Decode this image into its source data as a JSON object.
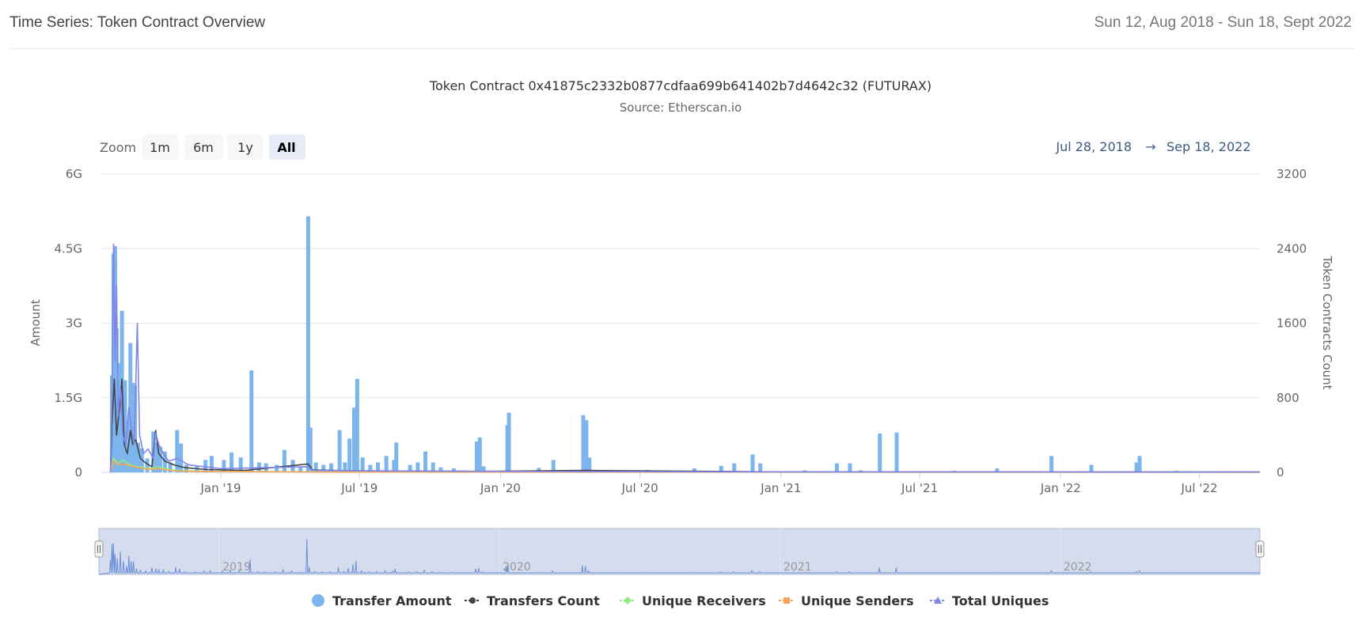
{
  "header": {
    "title": "Time Series: Token Contract Overview",
    "date_range": "Sun 12, Aug 2018 - Sun 18, Sept 2022"
  },
  "colors": {
    "transfer_amount": "#7cb5ec",
    "transfers_count": "#434348",
    "unique_receivers": "#90ed7d",
    "unique_senders": "#f7a35c",
    "total_uniques": "#8085e9",
    "navigator_fill": "#ccd6eb",
    "range_text": "#3d5a80"
  },
  "zoom": {
    "label": "Zoom",
    "buttons": [
      "1m",
      "6m",
      "1y",
      "All"
    ],
    "selected": "All"
  },
  "range_display": {
    "from": "Jul 28, 2018",
    "arrow": "→",
    "to": "Sep 18, 2022"
  },
  "chart_data": {
    "type": "bar",
    "title": "Token Contract 0x41875c2332b0877cdfaa699b641402b7d4642c32 (FUTURAX)",
    "subtitle": "Source: Etherscan.io",
    "ylabel": "Amount",
    "ylabel_right": "Token Contracts Count",
    "ylim": [
      0,
      6000000000
    ],
    "ylim_right": [
      0,
      3200
    ],
    "yticks": [
      "0",
      "1.5G",
      "3G",
      "4.5G",
      "6G"
    ],
    "yticks_right": [
      "0",
      "800",
      "1600",
      "2400",
      "3200"
    ],
    "xlim": [
      "2018-07-28",
      "2022-09-18"
    ],
    "xticks": [
      {
        "date": "2019-01-01",
        "label": "Jan '19"
      },
      {
        "date": "2019-07-01",
        "label": "Jul '19"
      },
      {
        "date": "2020-01-01",
        "label": "Jan '20"
      },
      {
        "date": "2020-07-01",
        "label": "Jul '20"
      },
      {
        "date": "2021-01-01",
        "label": "Jan '21"
      },
      {
        "date": "2021-07-01",
        "label": "Jul '21"
      },
      {
        "date": "2022-01-01",
        "label": "Jan '22"
      },
      {
        "date": "2022-07-01",
        "label": "Jul '22"
      }
    ],
    "navigator_labels": [
      {
        "date": "2019-01-01",
        "label": "2019"
      },
      {
        "date": "2020-01-01",
        "label": "2020"
      },
      {
        "date": "2021-01-01",
        "label": "2021"
      },
      {
        "date": "2022-01-01",
        "label": "2022"
      }
    ],
    "grid": true,
    "legend_position": "bottom",
    "series": [
      {
        "name": "Transfer Amount",
        "type": "column",
        "axis": "left",
        "points": [
          [
            "2018-08-12",
            1950000000
          ],
          [
            "2018-08-14",
            4400000000
          ],
          [
            "2018-08-16",
            4550000000
          ],
          [
            "2018-08-18",
            2900000000
          ],
          [
            "2018-08-21",
            2200000000
          ],
          [
            "2018-08-25",
            3250000000
          ],
          [
            "2018-08-29",
            1850000000
          ],
          [
            "2018-09-02",
            1050000000
          ],
          [
            "2018-09-05",
            2600000000
          ],
          [
            "2018-09-08",
            1800000000
          ],
          [
            "2018-09-11",
            1750000000
          ],
          [
            "2018-09-15",
            600000000
          ],
          [
            "2018-09-20",
            480000000
          ],
          [
            "2018-09-27",
            280000000
          ],
          [
            "2018-10-05",
            820000000
          ],
          [
            "2018-10-10",
            600000000
          ],
          [
            "2018-10-14",
            520000000
          ],
          [
            "2018-10-20",
            420000000
          ],
          [
            "2018-10-27",
            200000000
          ],
          [
            "2018-11-05",
            850000000
          ],
          [
            "2018-11-10",
            580000000
          ],
          [
            "2018-11-17",
            150000000
          ],
          [
            "2018-12-01",
            120000000
          ],
          [
            "2018-12-12",
            250000000
          ],
          [
            "2018-12-20",
            330000000
          ],
          [
            "2019-01-05",
            250000000
          ],
          [
            "2019-01-15",
            400000000
          ],
          [
            "2019-01-27",
            300000000
          ],
          [
            "2019-02-10",
            2050000000
          ],
          [
            "2019-02-20",
            200000000
          ],
          [
            "2019-03-01",
            180000000
          ],
          [
            "2019-03-15",
            150000000
          ],
          [
            "2019-03-25",
            450000000
          ],
          [
            "2019-04-05",
            250000000
          ],
          [
            "2019-04-15",
            100000000
          ],
          [
            "2019-04-25",
            5150000000
          ],
          [
            "2019-04-28",
            900000000
          ],
          [
            "2019-05-05",
            200000000
          ],
          [
            "2019-05-15",
            150000000
          ],
          [
            "2019-05-25",
            180000000
          ],
          [
            "2019-06-05",
            850000000
          ],
          [
            "2019-06-12",
            200000000
          ],
          [
            "2019-06-18",
            680000000
          ],
          [
            "2019-06-24",
            1300000000
          ],
          [
            "2019-06-28",
            1880000000
          ],
          [
            "2019-07-05",
            300000000
          ],
          [
            "2019-07-15",
            150000000
          ],
          [
            "2019-07-25",
            200000000
          ],
          [
            "2019-08-05",
            330000000
          ],
          [
            "2019-08-15",
            250000000
          ],
          [
            "2019-08-18",
            600000000
          ],
          [
            "2019-09-05",
            150000000
          ],
          [
            "2019-09-15",
            200000000
          ],
          [
            "2019-09-25",
            420000000
          ],
          [
            "2019-10-05",
            200000000
          ],
          [
            "2019-10-15",
            100000000
          ],
          [
            "2019-11-01",
            80000000
          ],
          [
            "2019-12-01",
            620000000
          ],
          [
            "2019-12-05",
            700000000
          ],
          [
            "2019-12-10",
            120000000
          ],
          [
            "2020-01-10",
            950000000
          ],
          [
            "2020-01-12",
            1200000000
          ],
          [
            "2020-02-20",
            90000000
          ],
          [
            "2020-03-10",
            250000000
          ],
          [
            "2020-04-18",
            1150000000
          ],
          [
            "2020-04-22",
            1050000000
          ],
          [
            "2020-04-26",
            300000000
          ],
          [
            "2020-06-10",
            40000000
          ],
          [
            "2020-07-10",
            50000000
          ],
          [
            "2020-09-10",
            80000000
          ],
          [
            "2020-10-15",
            130000000
          ],
          [
            "2020-11-01",
            180000000
          ],
          [
            "2020-11-25",
            360000000
          ],
          [
            "2020-12-05",
            180000000
          ],
          [
            "2021-02-01",
            40000000
          ],
          [
            "2021-03-15",
            180000000
          ],
          [
            "2021-04-01",
            180000000
          ],
          [
            "2021-04-15",
            40000000
          ],
          [
            "2021-05-10",
            780000000
          ],
          [
            "2021-06-01",
            800000000
          ],
          [
            "2021-08-15",
            30000000
          ],
          [
            "2021-10-10",
            80000000
          ],
          [
            "2021-12-20",
            330000000
          ],
          [
            "2022-02-10",
            150000000
          ],
          [
            "2022-04-10",
            200000000
          ],
          [
            "2022-04-14",
            330000000
          ],
          [
            "2022-06-01",
            30000000
          ]
        ]
      },
      {
        "name": "Transfers Count",
        "type": "line",
        "axis": "right",
        "points": [
          [
            "2018-08-10",
            0
          ],
          [
            "2018-08-12",
            500
          ],
          [
            "2018-08-15",
            1000
          ],
          [
            "2018-08-18",
            400
          ],
          [
            "2018-08-22",
            700
          ],
          [
            "2018-08-25",
            1000
          ],
          [
            "2018-08-28",
            300
          ],
          [
            "2018-09-01",
            200
          ],
          [
            "2018-09-05",
            450
          ],
          [
            "2018-09-08",
            300
          ],
          [
            "2018-09-12",
            350
          ],
          [
            "2018-09-18",
            150
          ],
          [
            "2018-09-25",
            100
          ],
          [
            "2018-10-03",
            60
          ],
          [
            "2018-10-08",
            450
          ],
          [
            "2018-10-12",
            200
          ],
          [
            "2018-10-20",
            120
          ],
          [
            "2018-11-01",
            80
          ],
          [
            "2018-11-15",
            50
          ],
          [
            "2018-12-15",
            30
          ],
          [
            "2019-02-01",
            20
          ],
          [
            "2019-04-25",
            90
          ],
          [
            "2019-05-01",
            25
          ],
          [
            "2019-07-01",
            15
          ],
          [
            "2019-12-01",
            10
          ],
          [
            "2020-04-20",
            20
          ],
          [
            "2021-01-01",
            5
          ],
          [
            "2022-09-18",
            3
          ]
        ]
      },
      {
        "name": "Unique Receivers",
        "type": "line",
        "axis": "right",
        "points": [
          [
            "2018-08-10",
            0
          ],
          [
            "2018-08-14",
            150
          ],
          [
            "2018-08-20",
            100
          ],
          [
            "2018-08-26",
            130
          ],
          [
            "2018-09-05",
            80
          ],
          [
            "2018-09-15",
            60
          ],
          [
            "2018-10-01",
            40
          ],
          [
            "2018-10-10",
            60
          ],
          [
            "2018-11-01",
            20
          ],
          [
            "2018-12-15",
            10
          ],
          [
            "2019-06-01",
            5
          ],
          [
            "2022-09-18",
            1
          ]
        ]
      },
      {
        "name": "Unique Senders",
        "type": "line",
        "axis": "right",
        "points": [
          [
            "2018-08-10",
            0
          ],
          [
            "2018-08-14",
            120
          ],
          [
            "2018-08-20",
            80
          ],
          [
            "2018-08-26",
            90
          ],
          [
            "2018-09-05",
            70
          ],
          [
            "2018-09-15",
            50
          ],
          [
            "2018-10-01",
            30
          ],
          [
            "2018-10-10",
            40
          ],
          [
            "2018-11-01",
            15
          ],
          [
            "2018-12-15",
            8
          ],
          [
            "2019-06-01",
            3
          ],
          [
            "2022-09-18",
            1
          ]
        ]
      },
      {
        "name": "Total Uniques",
        "type": "line",
        "axis": "right",
        "points": [
          [
            "2018-08-10",
            0
          ],
          [
            "2018-08-12",
            800
          ],
          [
            "2018-08-14",
            2450
          ],
          [
            "2018-08-16",
            1200
          ],
          [
            "2018-08-18",
            2000
          ],
          [
            "2018-08-20",
            600
          ],
          [
            "2018-08-23",
            900
          ],
          [
            "2018-08-26",
            400
          ],
          [
            "2018-08-30",
            300
          ],
          [
            "2018-09-03",
            700
          ],
          [
            "2018-09-06",
            500
          ],
          [
            "2018-09-10",
            300
          ],
          [
            "2018-09-14",
            1600
          ],
          [
            "2018-09-17",
            400
          ],
          [
            "2018-09-22",
            200
          ],
          [
            "2018-09-28",
            250
          ],
          [
            "2018-10-05",
            150
          ],
          [
            "2018-10-08",
            420
          ],
          [
            "2018-10-12",
            300
          ],
          [
            "2018-10-18",
            200
          ],
          [
            "2018-10-25",
            120
          ],
          [
            "2018-11-05",
            150
          ],
          [
            "2018-11-20",
            80
          ],
          [
            "2018-12-10",
            60
          ],
          [
            "2019-01-01",
            40
          ],
          [
            "2019-04-25",
            60
          ],
          [
            "2019-05-01",
            20
          ],
          [
            "2019-08-01",
            15
          ],
          [
            "2020-01-01",
            10
          ],
          [
            "2021-01-01",
            5
          ],
          [
            "2022-09-18",
            3
          ]
        ]
      }
    ]
  }
}
